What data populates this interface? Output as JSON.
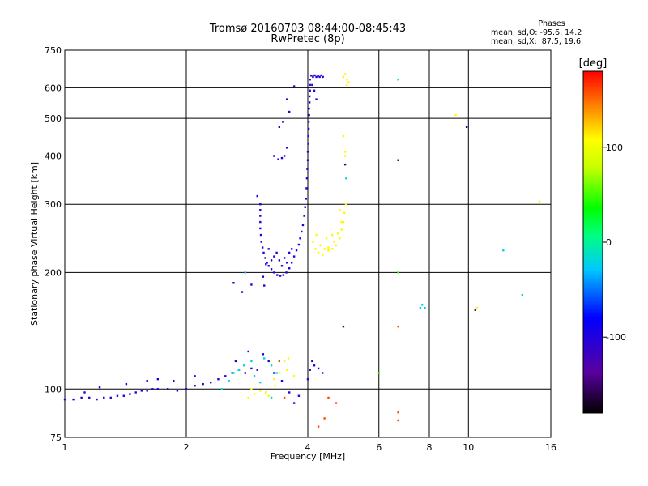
{
  "header": {
    "title_line1": "Tromsø 20160703 08:44:00-08:45:43",
    "title_line2": "RwPretec (8p)"
  },
  "phases": {
    "heading": "Phases",
    "line_o": "mean, sd,O: -95.6, 14.2",
    "line_x": "mean, sd,X:  87.5, 19.6"
  },
  "colorbar": {
    "label": "[deg]",
    "min": -180,
    "max": 180,
    "ticks": [
      100,
      0,
      -100
    ],
    "tick_labels": [
      "100",
      "0",
      "-100"
    ]
  },
  "chart_data": {
    "type": "scatter",
    "title": "",
    "xlabel": "Frequency [MHz]",
    "ylabel": "Stationary phase Virtual Height [km]",
    "x_scale": "log",
    "y_scale": "log",
    "xlim": [
      1,
      16
    ],
    "ylim": [
      75,
      750
    ],
    "x_ticks": [
      1,
      2,
      4,
      6,
      8,
      10,
      16
    ],
    "x_tick_labels": [
      "1",
      "2",
      "4",
      "6",
      "8",
      "10",
      "16"
    ],
    "y_ticks": [
      75,
      100,
      200,
      300,
      400,
      500,
      600,
      750
    ],
    "y_tick_labels": [
      "75",
      "100",
      "200",
      "300",
      "400",
      "500",
      "600",
      "750"
    ],
    "grid": true,
    "color_variable": "phase [deg]",
    "series": [
      {
        "points": [
          [
            1.0,
            94,
            -100
          ],
          [
            1.05,
            94,
            -100
          ],
          [
            1.1,
            95,
            -100
          ],
          [
            1.15,
            95,
            -100
          ],
          [
            1.2,
            94,
            -100
          ],
          [
            1.25,
            95,
            -100
          ],
          [
            1.3,
            95,
            -100
          ],
          [
            1.35,
            96,
            -100
          ],
          [
            1.4,
            96,
            -100
          ],
          [
            1.45,
            97,
            -100
          ],
          [
            1.5,
            98,
            -100
          ],
          [
            1.55,
            99,
            -100
          ],
          [
            1.6,
            99,
            -100
          ],
          [
            1.65,
            100,
            -100
          ],
          [
            1.7,
            100,
            -100
          ],
          [
            1.8,
            100,
            -100
          ],
          [
            1.9,
            99,
            -100
          ],
          [
            2.0,
            100,
            -100
          ],
          [
            2.1,
            102,
            -100
          ],
          [
            2.2,
            103,
            -100
          ],
          [
            2.3,
            104,
            -100
          ],
          [
            2.4,
            106,
            -100
          ],
          [
            2.5,
            108,
            -100
          ],
          [
            2.6,
            110,
            -100
          ],
          [
            2.7,
            112,
            -100
          ],
          [
            2.8,
            110,
            -100
          ],
          [
            2.9,
            113,
            -100
          ],
          [
            3.0,
            112,
            -100
          ],
          [
            1.12,
            98,
            -100
          ],
          [
            1.22,
            101,
            -100
          ],
          [
            1.42,
            103,
            -100
          ],
          [
            1.6,
            105,
            -100
          ],
          [
            1.7,
            106,
            -100
          ],
          [
            1.86,
            105,
            -100
          ],
          [
            2.1,
            108,
            -100
          ],
          [
            2.65,
            118,
            -100
          ],
          [
            2.85,
            125,
            -100
          ],
          [
            3.1,
            123,
            -100
          ],
          [
            3.2,
            118,
            -100
          ],
          [
            3.3,
            110,
            -100
          ],
          [
            3.45,
            105,
            -100
          ],
          [
            3.6,
            98,
            -100
          ],
          [
            3.7,
            92,
            -100
          ],
          [
            3.8,
            96,
            -100
          ],
          [
            4.0,
            106,
            -100
          ],
          [
            4.05,
            112,
            -100
          ],
          [
            4.15,
            115,
            -100
          ],
          [
            4.25,
            113,
            -100
          ],
          [
            4.35,
            110,
            -100
          ],
          [
            4.1,
            118,
            -100
          ],
          [
            2.62,
            188,
            -100
          ],
          [
            2.9,
            186,
            -100
          ],
          [
            3.0,
            315,
            -100
          ],
          [
            3.05,
            300,
            -100
          ],
          [
            3.05,
            290,
            -100
          ],
          [
            3.05,
            280,
            -100
          ],
          [
            3.05,
            270,
            -100
          ],
          [
            3.05,
            260,
            -100
          ],
          [
            3.06,
            250,
            -100
          ],
          [
            3.07,
            240,
            -100
          ],
          [
            3.09,
            232,
            -100
          ],
          [
            3.11,
            225,
            -100
          ],
          [
            3.14,
            218,
            -100
          ],
          [
            3.17,
            212,
            -100
          ],
          [
            3.2,
            208,
            -100
          ],
          [
            3.25,
            204,
            -100
          ],
          [
            3.3,
            200,
            -100
          ],
          [
            3.36,
            197,
            -100
          ],
          [
            3.42,
            196,
            -100
          ],
          [
            3.48,
            197,
            -100
          ],
          [
            3.54,
            200,
            -100
          ],
          [
            3.6,
            205,
            -100
          ],
          [
            3.65,
            212,
            -100
          ],
          [
            3.7,
            220,
            -100
          ],
          [
            3.75,
            228,
            -100
          ],
          [
            3.8,
            236,
            -100
          ],
          [
            3.83,
            245,
            -100
          ],
          [
            3.86,
            255,
            -100
          ],
          [
            3.89,
            265,
            -100
          ],
          [
            3.92,
            280,
            -100
          ],
          [
            3.94,
            295,
            -100
          ],
          [
            3.96,
            310,
            -100
          ],
          [
            3.97,
            330,
            -100
          ],
          [
            3.98,
            350,
            -100
          ],
          [
            3.99,
            370,
            -100
          ],
          [
            4.0,
            390,
            -100
          ],
          [
            4.0,
            410,
            -100
          ],
          [
            4.01,
            430,
            -100
          ],
          [
            4.01,
            450,
            -100
          ],
          [
            4.02,
            470,
            -100
          ],
          [
            4.02,
            490,
            -100
          ],
          [
            4.03,
            510,
            -100
          ],
          [
            4.03,
            530,
            -100
          ],
          [
            4.04,
            550,
            -100
          ],
          [
            4.04,
            570,
            -100
          ],
          [
            4.05,
            590,
            -100
          ],
          [
            4.05,
            610,
            -100
          ],
          [
            4.05,
            630,
            -100
          ],
          [
            4.08,
            645,
            -100
          ],
          [
            4.12,
            640,
            -100
          ],
          [
            4.16,
            646,
            -100
          ],
          [
            4.2,
            640,
            -100
          ],
          [
            4.24,
            645,
            -100
          ],
          [
            4.28,
            640,
            -100
          ],
          [
            4.32,
            646,
            -100
          ],
          [
            4.36,
            640,
            -100
          ],
          [
            4.1,
            610,
            -100
          ],
          [
            4.15,
            590,
            -100
          ],
          [
            4.2,
            560,
            -100
          ],
          [
            3.2,
            230,
            -100
          ],
          [
            3.3,
            220,
            -100
          ],
          [
            3.4,
            215,
            -100
          ],
          [
            3.5,
            218,
            -100
          ],
          [
            3.6,
            225,
            -100
          ],
          [
            3.15,
            210,
            -100
          ],
          [
            3.25,
            215,
            -100
          ],
          [
            3.35,
            225,
            -100
          ],
          [
            3.45,
            208,
            -100
          ],
          [
            3.55,
            212,
            -100
          ],
          [
            3.65,
            230,
            -100
          ],
          [
            3.38,
            392,
            -100
          ],
          [
            3.45,
            395,
            -100
          ],
          [
            3.55,
            420,
            -100
          ],
          [
            3.5,
            400,
            -100
          ],
          [
            3.4,
            475,
            -100
          ],
          [
            3.47,
            490,
            -100
          ],
          [
            3.3,
            400,
            -100
          ],
          [
            3.6,
            520,
            -100
          ],
          [
            3.55,
            560,
            -100
          ],
          [
            3.7,
            605,
            -100
          ],
          [
            3.12,
            185,
            -100
          ],
          [
            3.1,
            195,
            -100
          ],
          [
            2.75,
            178,
            -100
          ]
        ]
      },
      {
        "points": [
          [
            2.45,
            100,
            -20
          ],
          [
            2.55,
            105,
            -20
          ],
          [
            2.62,
            110,
            -20
          ],
          [
            2.7,
            112,
            -20
          ],
          [
            2.78,
            115,
            -20
          ],
          [
            2.9,
            118,
            -20
          ],
          [
            2.95,
            108,
            -20
          ],
          [
            3.05,
            104,
            -20
          ],
          [
            3.12,
            120,
            -20
          ],
          [
            3.25,
            115,
            -20
          ],
          [
            3.35,
            110,
            -20
          ],
          [
            3.15,
            98,
            -20
          ],
          [
            3.25,
            95,
            -20
          ],
          [
            2.8,
            200,
            -20
          ],
          [
            6.7,
            630,
            -20
          ],
          [
            7.6,
            162,
            -20
          ],
          [
            7.8,
            162,
            -20
          ],
          [
            7.68,
            165,
            -20
          ],
          [
            12.2,
            228,
            -20
          ],
          [
            13.6,
            175,
            -20
          ],
          [
            4.98,
            350,
            -20
          ]
        ]
      },
      {
        "points": [
          [
            3.3,
            106,
            110
          ],
          [
            3.32,
            102,
            110
          ],
          [
            3.5,
            118,
            110
          ],
          [
            3.55,
            112,
            110
          ],
          [
            3.58,
            120,
            110
          ],
          [
            3.4,
            110,
            110
          ],
          [
            3.7,
            108,
            110
          ],
          [
            2.85,
            95,
            110
          ],
          [
            2.95,
            97,
            110
          ],
          [
            3.05,
            99,
            110
          ],
          [
            3.15,
            98,
            110
          ],
          [
            3.2,
            96,
            110
          ],
          [
            2.9,
            100,
            110
          ],
          [
            4.9,
            640,
            110
          ],
          [
            5.0,
            630,
            110
          ],
          [
            5.05,
            620,
            110
          ],
          [
            5.0,
            610,
            110
          ],
          [
            4.95,
            650,
            110
          ],
          [
            4.9,
            450,
            110
          ],
          [
            4.95,
            400,
            110
          ],
          [
            4.95,
            410,
            110
          ],
          [
            4.2,
            250,
            110
          ],
          [
            4.3,
            235,
            110
          ],
          [
            4.4,
            230,
            110
          ],
          [
            4.5,
            228,
            110
          ],
          [
            4.6,
            230,
            110
          ],
          [
            4.7,
            235,
            110
          ],
          [
            4.8,
            245,
            110
          ],
          [
            4.85,
            258,
            110
          ],
          [
            4.9,
            270,
            110
          ],
          [
            4.93,
            285,
            110
          ],
          [
            4.97,
            300,
            110
          ],
          [
            4.25,
            225,
            110
          ],
          [
            4.35,
            222,
            110
          ],
          [
            4.5,
            232,
            110
          ],
          [
            4.65,
            240,
            110
          ],
          [
            4.75,
            252,
            110
          ],
          [
            4.85,
            270,
            110
          ],
          [
            4.8,
            290,
            110
          ],
          [
            4.12,
            240,
            110
          ],
          [
            4.18,
            230,
            110
          ],
          [
            4.45,
            245,
            110
          ],
          [
            4.6,
            250,
            110
          ],
          [
            10.5,
            162,
            110
          ],
          [
            15.0,
            305,
            110
          ],
          [
            9.3,
            510,
            110
          ]
        ]
      },
      {
        "points": [
          [
            3.4,
            118,
            160
          ],
          [
            3.5,
            95,
            160
          ],
          [
            4.4,
            84,
            160
          ],
          [
            4.25,
            80,
            160
          ],
          [
            6.7,
            145,
            160
          ],
          [
            6.7,
            87,
            160
          ],
          [
            6.7,
            83,
            160
          ],
          [
            4.5,
            95,
            160
          ],
          [
            4.7,
            92,
            160
          ]
        ]
      },
      {
        "points": [
          [
            6.0,
            110,
            50
          ],
          [
            6.7,
            200,
            50
          ]
        ]
      },
      {
        "points": [
          [
            9.9,
            475,
            -150
          ],
          [
            6.7,
            390,
            -150
          ],
          [
            10.4,
            160,
            -150
          ],
          [
            4.9,
            145,
            -150
          ],
          [
            4.95,
            380,
            -150
          ]
        ]
      }
    ]
  }
}
